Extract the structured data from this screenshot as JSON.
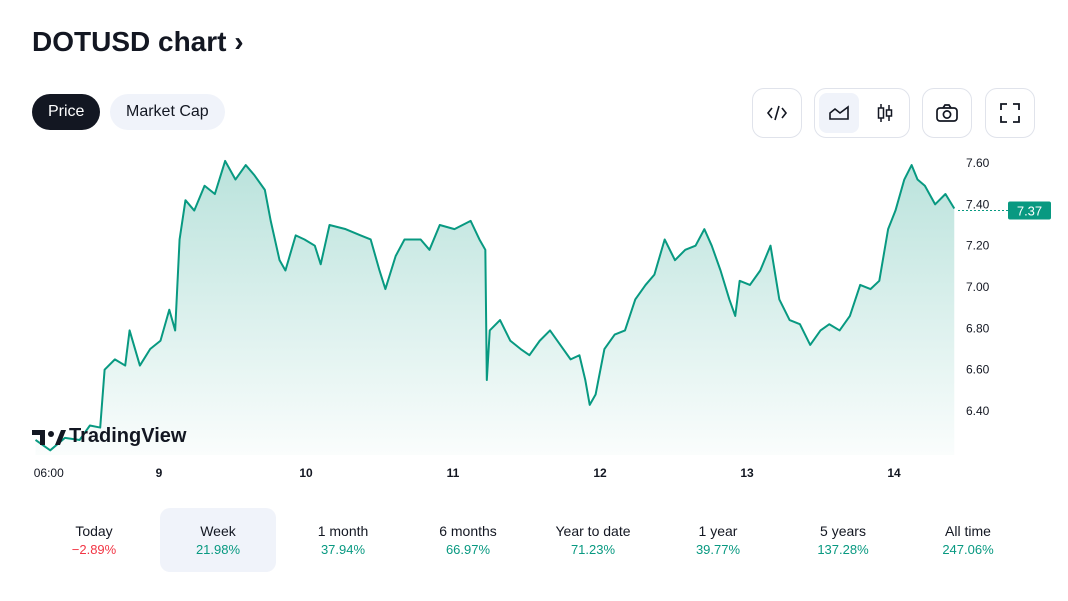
{
  "title": "DOTUSD chart ›",
  "tabs": [
    {
      "label": "Price",
      "active": true
    },
    {
      "label": "Market Cap",
      "active": false
    }
  ],
  "toolbar": [
    "embed-code-icon",
    "area-chart-icon",
    "candlestick-chart-icon",
    "camera-icon",
    "fullscreen-icon"
  ],
  "logo": "TradingView",
  "colors": {
    "line": "#089981",
    "negative": "#f23645",
    "positive": "#089981",
    "active_bg": "#f0f3fa"
  },
  "chart_data": {
    "type": "area",
    "x": [
      8.16,
      8.26,
      8.36,
      8.46,
      8.53,
      8.6,
      8.63,
      8.7,
      8.77,
      8.8,
      8.87,
      8.94,
      9.01,
      9.07,
      9.11,
      9.14,
      9.18,
      9.24,
      9.31,
      9.38,
      9.45,
      9.52,
      9.59,
      9.65,
      9.72,
      9.76,
      9.82,
      9.86,
      9.93,
      9.99,
      10.06,
      10.1,
      10.16,
      10.27,
      10.37,
      10.44,
      10.5,
      10.54,
      10.61,
      10.67,
      10.78,
      10.84,
      10.91,
      11.01,
      11.12,
      11.18,
      11.22,
      11.23,
      11.25,
      11.32,
      11.39,
      11.46,
      11.52,
      11.59,
      11.66,
      11.73,
      11.8,
      11.86,
      11.9,
      11.93,
      11.97,
      12.03,
      12.1,
      12.17,
      12.24,
      12.31,
      12.37,
      12.44,
      12.51,
      12.58,
      12.65,
      12.71,
      12.76,
      12.82,
      12.88,
      12.92,
      12.95,
      13.02,
      13.09,
      13.16,
      13.22,
      13.29,
      13.36,
      13.43,
      13.5,
      13.56,
      13.63,
      13.7,
      13.77,
      13.84,
      13.9,
      13.96,
      14.01,
      14.07,
      14.12,
      14.16,
      14.21,
      14.28,
      14.35,
      14.41
    ],
    "values": [
      6.26,
      6.21,
      6.27,
      6.26,
      6.33,
      6.32,
      6.6,
      6.65,
      6.62,
      6.79,
      6.62,
      6.7,
      6.74,
      6.89,
      6.79,
      7.23,
      7.42,
      7.37,
      7.49,
      7.45,
      7.61,
      7.52,
      7.59,
      7.54,
      7.47,
      7.32,
      7.13,
      7.08,
      7.25,
      7.23,
      7.2,
      7.11,
      7.3,
      7.28,
      7.25,
      7.23,
      7.08,
      6.99,
      7.15,
      7.23,
      7.23,
      7.18,
      7.3,
      7.28,
      7.32,
      7.23,
      7.18,
      6.55,
      6.79,
      6.84,
      6.74,
      6.7,
      6.67,
      6.74,
      6.79,
      6.72,
      6.65,
      6.67,
      6.55,
      6.43,
      6.48,
      6.7,
      6.77,
      6.79,
      6.94,
      7.01,
      7.06,
      7.23,
      7.13,
      7.18,
      7.2,
      7.28,
      7.2,
      7.08,
      6.94,
      6.86,
      7.03,
      7.01,
      7.08,
      7.2,
      6.94,
      6.84,
      6.82,
      6.72,
      6.79,
      6.82,
      6.79,
      6.86,
      7.01,
      6.99,
      7.03,
      7.28,
      7.37,
      7.52,
      7.59,
      7.52,
      7.49,
      7.4,
      7.45,
      7.38
    ],
    "xticks": [
      {
        "x": 8.25,
        "label": "06:00"
      },
      {
        "x": 9,
        "label": "9"
      },
      {
        "x": 10,
        "label": "10"
      },
      {
        "x": 11,
        "label": "11"
      },
      {
        "x": 12,
        "label": "12"
      },
      {
        "x": 13,
        "label": "13"
      },
      {
        "x": 14,
        "label": "14"
      }
    ],
    "yticks": [
      6.4,
      6.6,
      6.8,
      7.0,
      7.2,
      7.4,
      7.6
    ],
    "ylim": [
      6.19,
      7.66
    ],
    "last_price": "7.37",
    "grid": false
  },
  "periods": [
    {
      "label": "Today",
      "value": "−2.89%",
      "dir": "neg"
    },
    {
      "label": "Week",
      "value": "21.98%",
      "dir": "pos",
      "active": true
    },
    {
      "label": "1 month",
      "value": "37.94%",
      "dir": "pos"
    },
    {
      "label": "6 months",
      "value": "66.97%",
      "dir": "pos"
    },
    {
      "label": "Year to date",
      "value": "71.23%",
      "dir": "pos"
    },
    {
      "label": "1 year",
      "value": "39.77%",
      "dir": "pos"
    },
    {
      "label": "5 years",
      "value": "137.28%",
      "dir": "pos"
    },
    {
      "label": "All time",
      "value": "247.06%",
      "dir": "pos"
    }
  ]
}
